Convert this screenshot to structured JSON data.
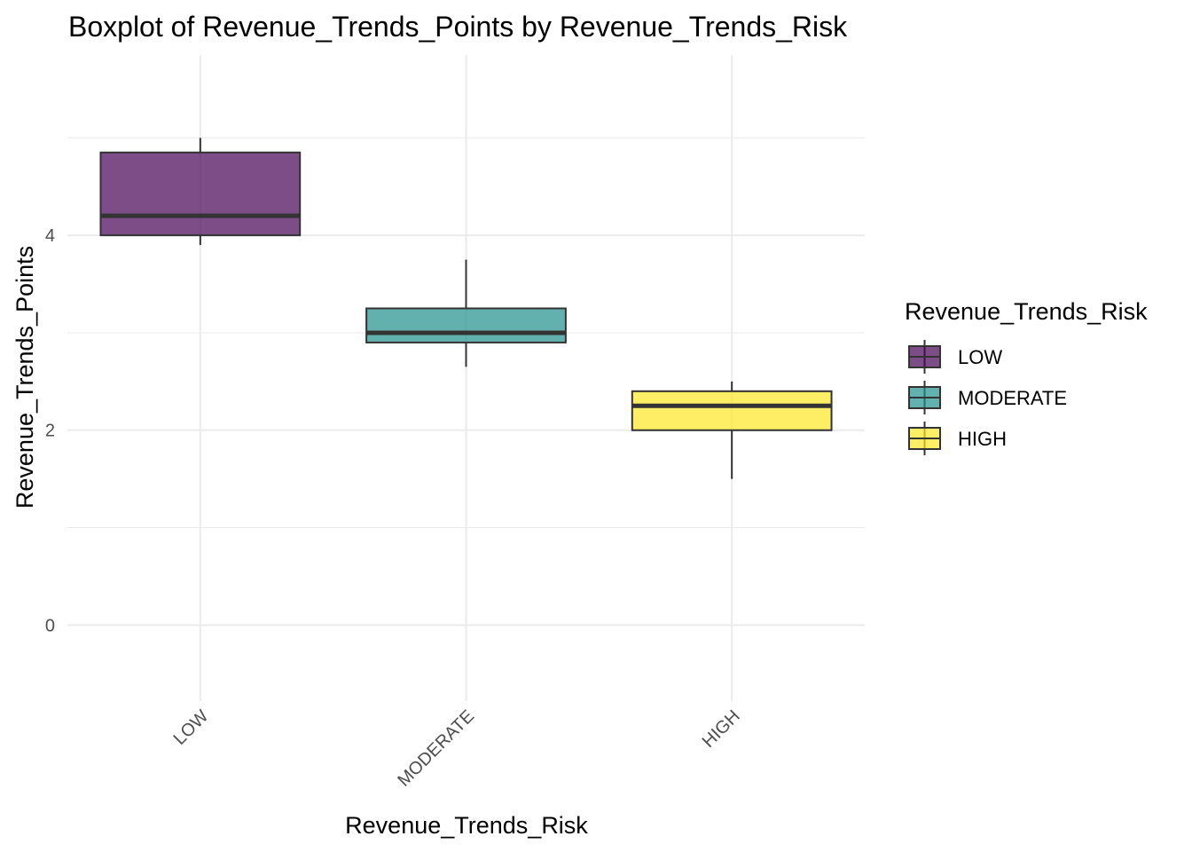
{
  "chart_data": {
    "type": "boxplot",
    "title": "Boxplot of Revenue_Trends_Points by Revenue_Trends_Risk",
    "xlabel": "Revenue_Trends_Risk",
    "ylabel": "Revenue_Trends_Points",
    "categories": [
      "LOW",
      "MODERATE",
      "HIGH"
    ],
    "y_ticks": [
      0,
      2,
      4
    ],
    "ylim": [
      -0.78,
      5.85
    ],
    "grid": true,
    "legend": {
      "title": "Revenue_Trends_Risk",
      "placement": "right",
      "entries": [
        "LOW",
        "MODERATE",
        "HIGH"
      ]
    },
    "colors": [
      "#440154",
      "#21908C",
      "#FDE725"
    ],
    "fill_opacity": 0.7,
    "series": [
      {
        "category": "LOW",
        "min": 3.9,
        "q1": 4.0,
        "median": 4.2,
        "q3": 4.85,
        "max": 5.0
      },
      {
        "category": "MODERATE",
        "min": 2.65,
        "q1": 2.9,
        "median": 3.0,
        "q3": 3.25,
        "max": 3.75
      },
      {
        "category": "HIGH",
        "min": 1.5,
        "q1": 2.0,
        "median": 2.25,
        "q3": 2.4,
        "max": 2.5
      }
    ]
  }
}
